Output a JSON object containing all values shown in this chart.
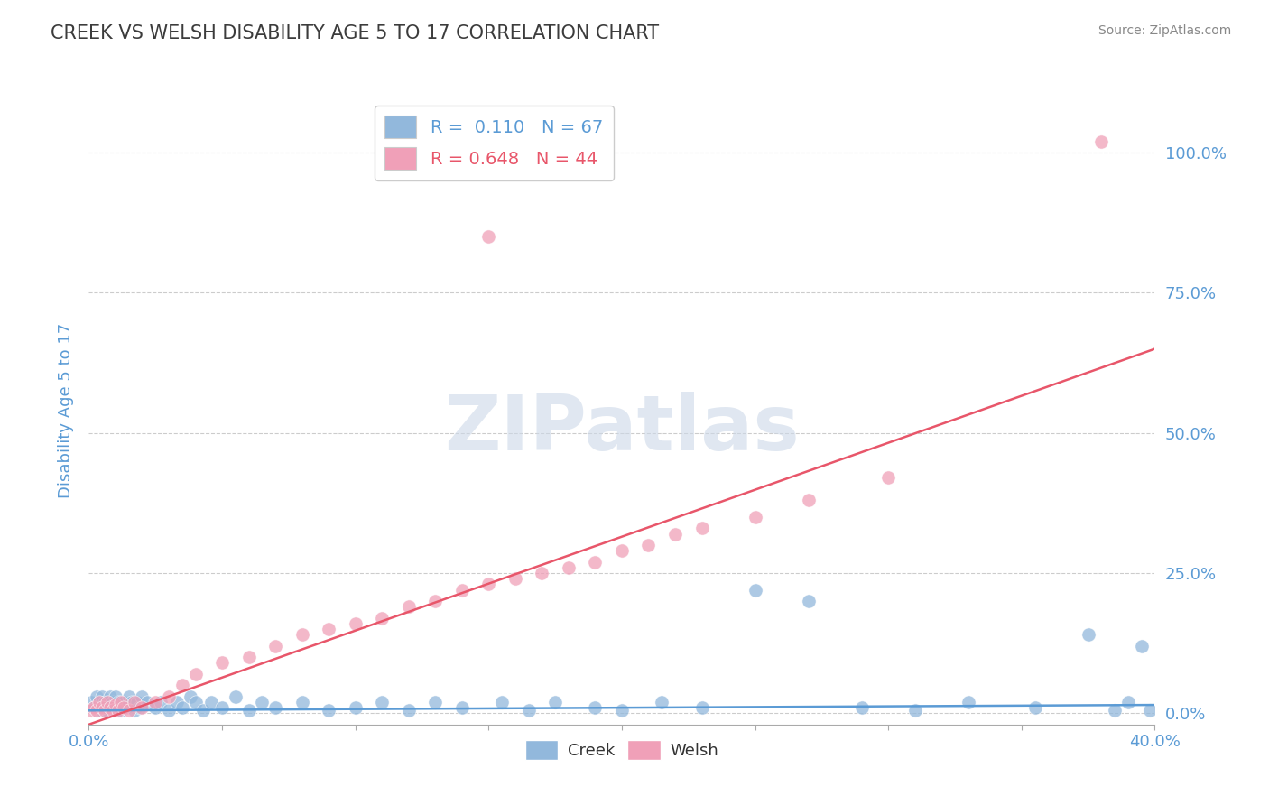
{
  "title": "CREEK VS WELSH DISABILITY AGE 5 TO 17 CORRELATION CHART",
  "source": "Source: ZipAtlas.com",
  "ylabel": "Disability Age 5 to 17",
  "xlim": [
    0.0,
    0.4
  ],
  "ylim": [
    -0.02,
    1.1
  ],
  "yticks": [
    0.0,
    0.25,
    0.5,
    0.75,
    1.0
  ],
  "ytick_labels": [
    "0.0%",
    "25.0%",
    "50.0%",
    "75.0%",
    "100.0%"
  ],
  "xticks": [
    0.0,
    0.05,
    0.1,
    0.15,
    0.2,
    0.25,
    0.3,
    0.35,
    0.4
  ],
  "xtick_labels": [
    "0.0%",
    "",
    "",
    "",
    "",
    "",
    "",
    "",
    "40.0%"
  ],
  "creek_color": "#92b8dc",
  "welsh_color": "#f0a0b8",
  "creek_line_color": "#5b9bd5",
  "welsh_line_color": "#e8566a",
  "creek_R": 0.11,
  "creek_N": 67,
  "welsh_R": 0.648,
  "welsh_N": 44,
  "watermark": "ZIPatlas",
  "title_color": "#3c3c3c",
  "axis_label_color": "#5b9bd5",
  "grid_color": "#cccccc",
  "background_color": "#ffffff",
  "creek_x": [
    0.001,
    0.002,
    0.003,
    0.003,
    0.004,
    0.004,
    0.005,
    0.005,
    0.006,
    0.006,
    0.007,
    0.007,
    0.008,
    0.008,
    0.009,
    0.01,
    0.01,
    0.011,
    0.012,
    0.013,
    0.014,
    0.015,
    0.016,
    0.017,
    0.018,
    0.019,
    0.02,
    0.022,
    0.025,
    0.027,
    0.03,
    0.033,
    0.035,
    0.038,
    0.04,
    0.043,
    0.046,
    0.05,
    0.055,
    0.06,
    0.065,
    0.07,
    0.08,
    0.09,
    0.1,
    0.11,
    0.12,
    0.13,
    0.14,
    0.155,
    0.165,
    0.175,
    0.19,
    0.2,
    0.215,
    0.23,
    0.25,
    0.27,
    0.29,
    0.31,
    0.33,
    0.355,
    0.375,
    0.385,
    0.39,
    0.395,
    0.398
  ],
  "creek_y": [
    0.02,
    0.01,
    0.03,
    0.005,
    0.02,
    0.01,
    0.03,
    0.005,
    0.02,
    0.01,
    0.02,
    0.005,
    0.03,
    0.01,
    0.02,
    0.01,
    0.03,
    0.02,
    0.005,
    0.02,
    0.01,
    0.03,
    0.02,
    0.005,
    0.02,
    0.01,
    0.03,
    0.02,
    0.01,
    0.02,
    0.005,
    0.02,
    0.01,
    0.03,
    0.02,
    0.005,
    0.02,
    0.01,
    0.03,
    0.005,
    0.02,
    0.01,
    0.02,
    0.005,
    0.01,
    0.02,
    0.005,
    0.02,
    0.01,
    0.02,
    0.005,
    0.02,
    0.01,
    0.005,
    0.02,
    0.01,
    0.22,
    0.2,
    0.01,
    0.005,
    0.02,
    0.01,
    0.14,
    0.005,
    0.02,
    0.12,
    0.005
  ],
  "welsh_x": [
    0.001,
    0.002,
    0.003,
    0.004,
    0.005,
    0.006,
    0.007,
    0.008,
    0.009,
    0.01,
    0.011,
    0.012,
    0.013,
    0.015,
    0.017,
    0.02,
    0.025,
    0.03,
    0.035,
    0.04,
    0.05,
    0.06,
    0.07,
    0.08,
    0.09,
    0.1,
    0.11,
    0.12,
    0.13,
    0.14,
    0.15,
    0.16,
    0.17,
    0.18,
    0.19,
    0.2,
    0.21,
    0.22,
    0.23,
    0.25,
    0.27,
    0.3,
    0.15,
    0.38
  ],
  "welsh_y": [
    0.005,
    0.01,
    0.005,
    0.02,
    0.01,
    0.005,
    0.02,
    0.01,
    0.005,
    0.015,
    0.005,
    0.02,
    0.01,
    0.005,
    0.02,
    0.01,
    0.02,
    0.03,
    0.05,
    0.07,
    0.09,
    0.1,
    0.12,
    0.14,
    0.15,
    0.16,
    0.17,
    0.19,
    0.2,
    0.22,
    0.23,
    0.24,
    0.25,
    0.26,
    0.27,
    0.29,
    0.3,
    0.32,
    0.33,
    0.35,
    0.38,
    0.42,
    0.85,
    1.02
  ],
  "welsh_line_x0": 0.0,
  "welsh_line_y0": -0.02,
  "welsh_line_x1": 0.4,
  "welsh_line_y1": 0.65,
  "creek_line_x0": 0.0,
  "creek_line_y0": 0.005,
  "creek_line_x1": 0.4,
  "creek_line_y1": 0.015
}
